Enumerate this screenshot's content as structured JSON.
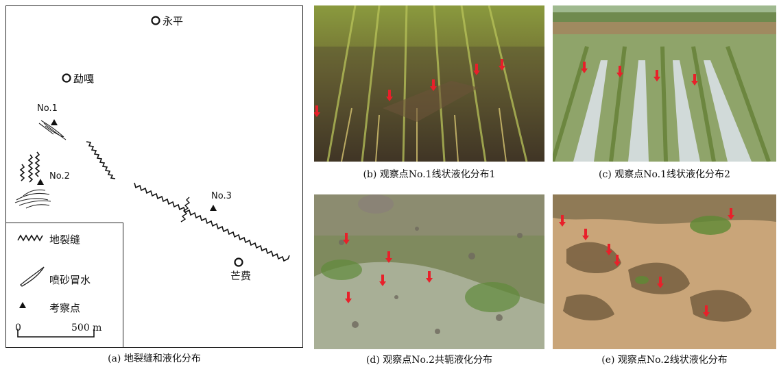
{
  "map": {
    "towns": [
      {
        "name": "永平"
      },
      {
        "name": "勐嘎"
      },
      {
        "name": "芒费"
      }
    ],
    "points": [
      {
        "label": "No.1"
      },
      {
        "label": "No.2"
      },
      {
        "label": "No.3"
      }
    ],
    "legend": {
      "crack": "地裂缝",
      "sand": "喷砂冒水",
      "point": "考察点"
    },
    "scale": {
      "zero": "0",
      "distance": "500 m"
    },
    "caption": "(a) 地裂缝和液化分布"
  },
  "photos": {
    "b": {
      "caption": "(b) 观察点No.1线状液化分布1"
    },
    "c": {
      "caption": "(c) 观察点No.1线状液化分布2"
    },
    "d": {
      "caption": "(d) 观察点No.2共轭液化分布"
    },
    "e": {
      "caption": "(e) 观察点No.2线状液化分布"
    }
  },
  "colors": {
    "arrow": "#e8202a",
    "crack": "#111111"
  }
}
